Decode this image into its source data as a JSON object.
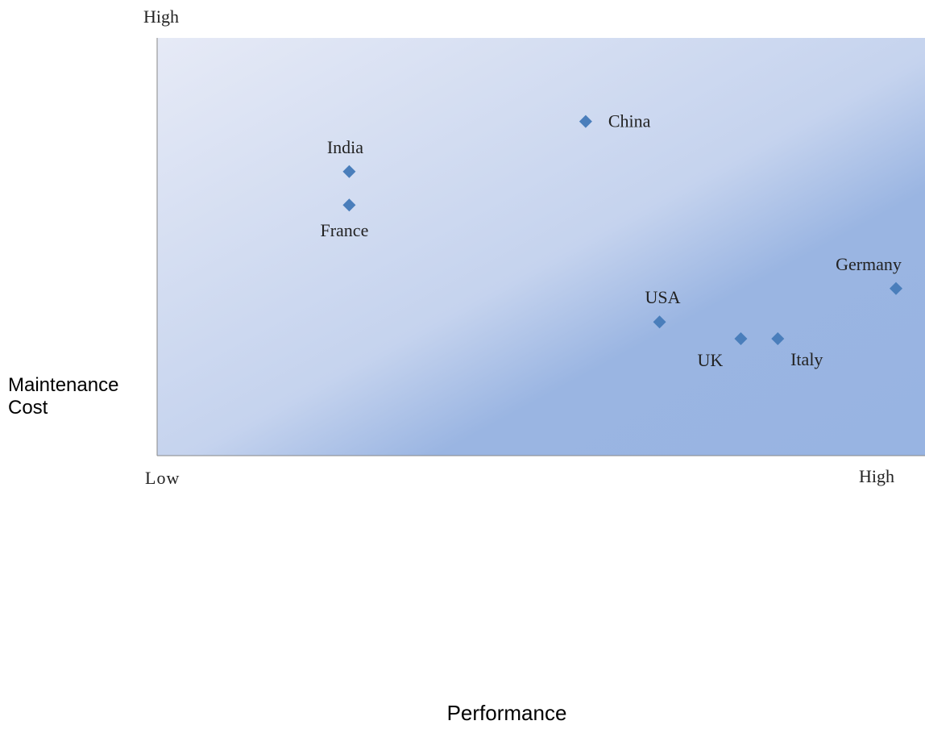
{
  "chart_data": {
    "type": "scatter",
    "xlabel": "Performance",
    "ylabel": "Maintenance Cost",
    "x_tick_labels": {
      "low": "Low",
      "high": "High"
    },
    "y_tick_labels": {
      "high": "High"
    },
    "xlim": [
      0,
      10
    ],
    "ylim": [
      0,
      10
    ],
    "grid": false,
    "colors": {
      "marker": "#4a7ebb",
      "plot_light": "#e6eaf6",
      "plot_dark": "#9ab5e2",
      "axis": "#888888"
    },
    "points": [
      {
        "label": "China",
        "x": 5.8,
        "y": 8.0
      },
      {
        "label": "India",
        "x": 2.6,
        "y": 6.8
      },
      {
        "label": "France",
        "x": 2.6,
        "y": 6.0
      },
      {
        "label": "Germany",
        "x": 10.0,
        "y": 4.0
      },
      {
        "label": "USA",
        "x": 6.8,
        "y": 3.2
      },
      {
        "label": "UK",
        "x": 7.9,
        "y": 2.8
      },
      {
        "label": "Italy",
        "x": 8.4,
        "y": 2.8
      }
    ]
  }
}
